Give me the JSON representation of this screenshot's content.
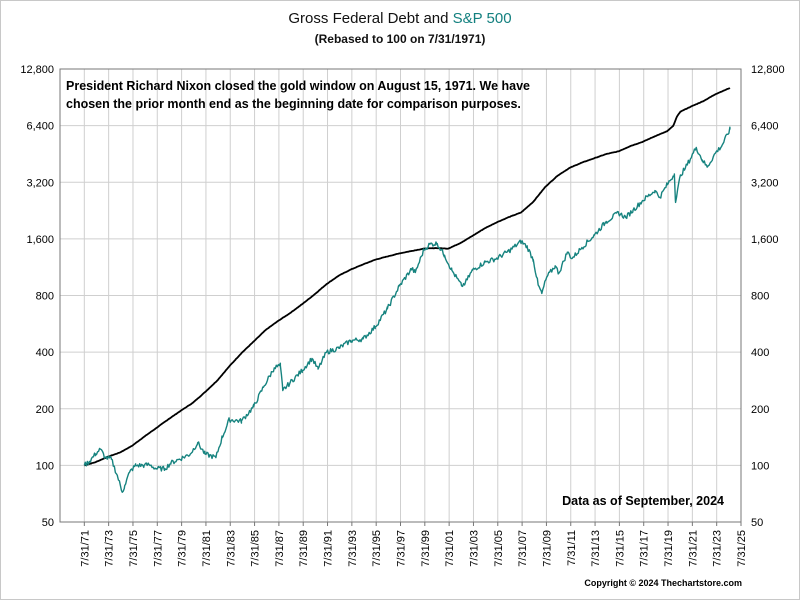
{
  "chart_data": {
    "type": "line",
    "title_part1": "Gross Federal Debt and",
    "title_part2": "S&P 500",
    "subtitle": "(Rebased to 100 on 7/31/1971)",
    "annotation_lines": [
      "President Richard Nixon closed the gold window on August 15, 1971.  We have",
      "chosen the prior month end as the beginning date for comparison purposes."
    ],
    "data_note": "Data as of September, 2024",
    "copyright": "Copyright © 2024 Thechartstore.com",
    "y_scale": "log2",
    "ylim": [
      50,
      12800
    ],
    "y_ticks": [
      50,
      100,
      200,
      400,
      800,
      1600,
      3200,
      6400,
      12800
    ],
    "y_tick_labels": [
      "50",
      "100",
      "200",
      "400",
      "800",
      "1,600",
      "3,200",
      "6,400",
      "12,800"
    ],
    "xlim": [
      1969.58,
      2025.58
    ],
    "x_tick_labels": [
      "7/31/71",
      "7/31/73",
      "7/31/75",
      "7/31/77",
      "7/31/79",
      "7/31/81",
      "7/31/83",
      "7/31/85",
      "7/31/87",
      "7/31/89",
      "7/31/91",
      "7/31/93",
      "7/31/95",
      "7/31/97",
      "7/31/99",
      "7/31/01",
      "7/31/03",
      "7/31/05",
      "7/31/07",
      "7/31/09",
      "7/31/11",
      "7/31/13",
      "7/31/15",
      "7/31/17",
      "7/31/19",
      "7/31/21",
      "7/31/23",
      "7/31/25"
    ],
    "grid": true,
    "series": [
      {
        "color": "#000000",
        "x": [
          1971.58,
          1972.5,
          1973.5,
          1974.5,
          1975.5,
          1976.5,
          1977.5,
          1978.5,
          1979.5,
          1980.5,
          1981.5,
          1982.5,
          1983.5,
          1984.5,
          1985.5,
          1986.5,
          1987.5,
          1988.5,
          1989.5,
          1990.5,
          1991.5,
          1992.5,
          1993.5,
          1994.5,
          1995.5,
          1996.5,
          1997.5,
          1998.5,
          1999.5,
          2000.5,
          2001.5,
          2002.5,
          2003.5,
          2004.5,
          2005.5,
          2006.5,
          2007.5,
          2008.5,
          2009.5,
          2010.5,
          2011.5,
          2012.5,
          2013.5,
          2014.5,
          2015.5,
          2016.5,
          2017.5,
          2018.5,
          2019.5,
          2020.0,
          2020.3,
          2020.6,
          2021.5,
          2022.5,
          2023.5,
          2024.67
        ],
        "values": [
          100,
          104,
          111,
          117,
          127,
          142,
          158,
          176,
          195,
          215,
          245,
          282,
          336,
          395,
          455,
          525,
          585,
          645,
          720,
          810,
          920,
          1020,
          1100,
          1170,
          1240,
          1290,
          1340,
          1380,
          1420,
          1430,
          1420,
          1520,
          1660,
          1820,
          1960,
          2090,
          2210,
          2520,
          3030,
          3470,
          3820,
          4070,
          4290,
          4520,
          4670,
          4990,
          5250,
          5620,
          5970,
          6370,
          7120,
          7600,
          8100,
          8650,
          9420,
          10150
        ]
      },
      {
        "color": "#16837f",
        "x": [
          1971.58,
          1972.0,
          1972.5,
          1972.9,
          1973.3,
          1973.8,
          1974.3,
          1974.7,
          1974.9,
          1975.3,
          1975.8,
          1976.5,
          1976.9,
          1977.5,
          1978.2,
          1978.7,
          1979.4,
          1980.3,
          1980.9,
          1981.5,
          1982.4,
          1982.9,
          1983.5,
          1984.5,
          1985.5,
          1986.3,
          1987.2,
          1987.7,
          1987.9,
          1988.5,
          1989.5,
          1990.3,
          1990.8,
          1991.5,
          1992.5,
          1993.5,
          1994.5,
          1995.5,
          1996.5,
          1997.5,
          1998.5,
          1998.8,
          1999.5,
          2000.0,
          2000.6,
          2001.2,
          2001.8,
          2002.6,
          2002.9,
          2003.5,
          2004.5,
          2005.5,
          2006.5,
          2007.5,
          2008.0,
          2008.5,
          2008.9,
          2009.2,
          2009.6,
          2010.3,
          2010.6,
          2011.3,
          2011.7,
          2012.5,
          2013.5,
          2014.5,
          2015.5,
          2016.1,
          2016.7,
          2017.5,
          2018.5,
          2018.9,
          2019.5,
          2020.1,
          2020.2,
          2020.6,
          2021.0,
          2021.9,
          2022.4,
          2022.8,
          2023.5,
          2024.0,
          2024.67
        ],
        "values": [
          100,
          105,
          115,
          122,
          110,
          108,
          88,
          72,
          78,
          92,
          100,
          100,
          101,
          96,
          96,
          103,
          108,
          115,
          132,
          115,
          110,
          140,
          175,
          172,
          205,
          260,
          330,
          340,
          250,
          275,
          320,
          370,
          325,
          400,
          420,
          460,
          470,
          545,
          680,
          900,
          1110,
          1060,
          1400,
          1500,
          1510,
          1310,
          1090,
          900,
          930,
          1090,
          1200,
          1260,
          1380,
          1550,
          1450,
          1240,
          910,
          820,
          1000,
          1150,
          1050,
          1360,
          1260,
          1440,
          1670,
          1980,
          2200,
          2080,
          2270,
          2560,
          2890,
          2660,
          3100,
          3540,
          2500,
          3500,
          3800,
          4900,
          4200,
          3850,
          4600,
          5000,
          6100
        ]
      }
    ]
  }
}
